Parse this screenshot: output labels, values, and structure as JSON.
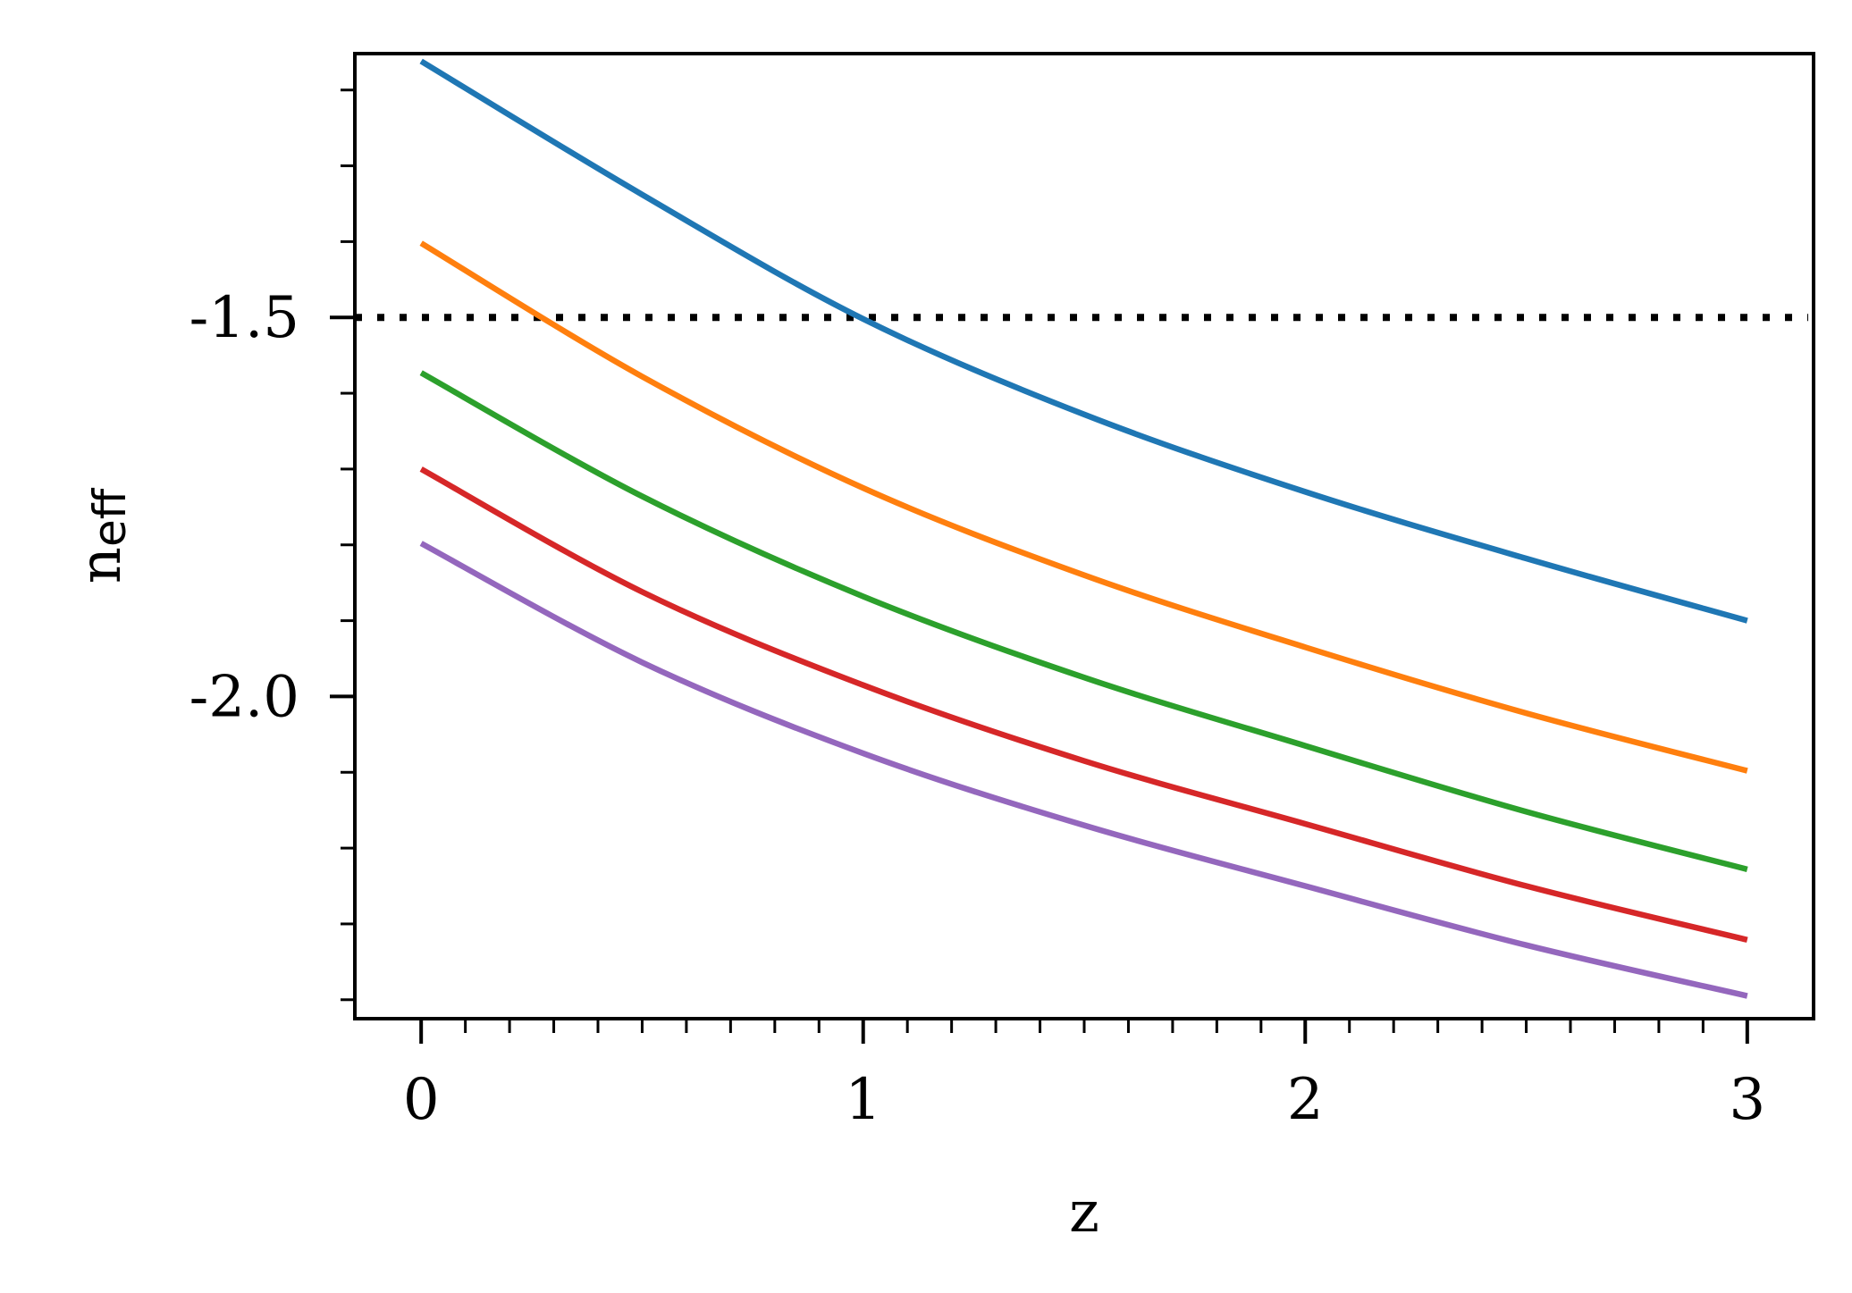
{
  "chart_data": {
    "type": "line",
    "xlabel": "z",
    "ylabel": {
      "main": "n",
      "sub": "eff"
    },
    "xlim": [
      -0.15,
      3.15
    ],
    "ylim": [
      -2.425,
      -1.152
    ],
    "xticks": [
      0,
      1,
      2,
      3
    ],
    "xtick_labels": [
      "0",
      "1",
      "2",
      "3"
    ],
    "yticks": [
      -1.5,
      -2.0
    ],
    "ytick_labels": [
      "-1.5",
      "-2.0"
    ],
    "x_minor_step": 0.1,
    "y_minor_step": 0.1,
    "hline": {
      "y": -1.5,
      "style": "dotted",
      "color": "#000000"
    },
    "x": [
      0,
      0.5,
      1,
      1.5,
      2,
      2.5,
      3
    ],
    "series": [
      {
        "color": "#1f77b4",
        "values": [
          -1.162,
          -1.338,
          -1.502,
          -1.628,
          -1.73,
          -1.818,
          -1.9
        ]
      },
      {
        "color": "#ff7f0e",
        "values": [
          -1.402,
          -1.578,
          -1.725,
          -1.84,
          -1.935,
          -2.022,
          -2.098
        ]
      },
      {
        "color": "#2ca02c",
        "values": [
          -1.573,
          -1.736,
          -1.868,
          -1.975,
          -2.065,
          -2.152,
          -2.228
        ]
      },
      {
        "color": "#d62728",
        "values": [
          -1.7,
          -1.862,
          -1.985,
          -2.085,
          -2.168,
          -2.25,
          -2.321
        ]
      },
      {
        "color": "#9467bd",
        "values": [
          -1.798,
          -1.955,
          -2.075,
          -2.17,
          -2.25,
          -2.328,
          -2.395
        ]
      }
    ]
  }
}
